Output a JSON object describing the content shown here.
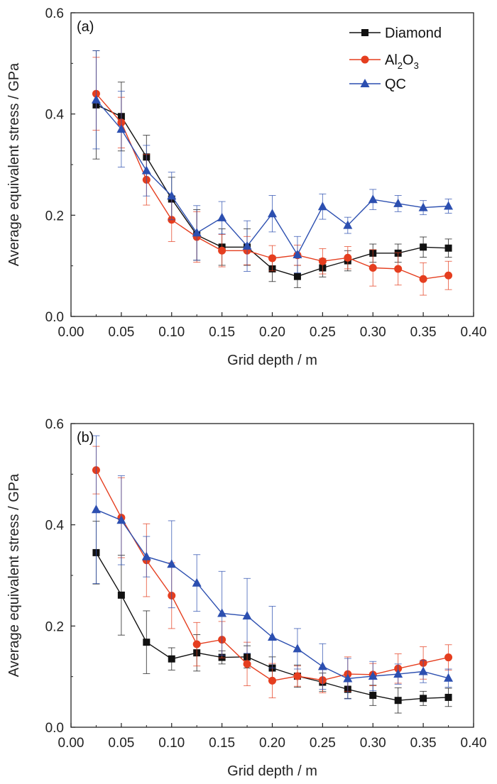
{
  "chart_data": [
    {
      "type": "line",
      "panel": "(a)",
      "xlabel": "Grid depth / m",
      "ylabel": "Average equivalent stress / GPa",
      "xlim": [
        0,
        0.4
      ],
      "ylim": [
        0,
        0.6
      ],
      "xticks": [
        "0.00",
        "0.05",
        "0.10",
        "0.15",
        "0.20",
        "0.25",
        "0.30",
        "0.35",
        "0.40"
      ],
      "yticks": [
        "0.0",
        "0.2",
        "0.4",
        "0.6"
      ],
      "legend_position": "top-right",
      "x": [
        0.025,
        0.05,
        0.075,
        0.1,
        0.125,
        0.15,
        0.175,
        0.2,
        0.225,
        0.25,
        0.275,
        0.3,
        0.325,
        0.35,
        0.375
      ],
      "series": [
        {
          "name": "Diamond",
          "color": "#111111",
          "marker": "square",
          "values": [
            0.418,
            0.395,
            0.315,
            0.232,
            0.161,
            0.137,
            0.137,
            0.094,
            0.079,
            0.096,
            0.11,
            0.125,
            0.125,
            0.137,
            0.135
          ],
          "errors": [
            0.107,
            0.068,
            0.043,
            0.043,
            0.05,
            0.036,
            0.036,
            0.025,
            0.022,
            0.018,
            0.02,
            0.018,
            0.018,
            0.02,
            0.018
          ]
        },
        {
          "name": "Al2O3",
          "color": "#e53e1f",
          "marker": "circle",
          "values": [
            0.44,
            0.383,
            0.27,
            0.191,
            0.157,
            0.13,
            0.13,
            0.115,
            0.121,
            0.109,
            0.116,
            0.096,
            0.094,
            0.074,
            0.081
          ],
          "errors": [
            0.072,
            0.05,
            0.05,
            0.043,
            0.05,
            0.032,
            0.028,
            0.025,
            0.02,
            0.025,
            0.022,
            0.036,
            0.032,
            0.032,
            0.028
          ]
        },
        {
          "name": "QC",
          "color": "#2c4fb0",
          "marker": "triangle",
          "values": [
            0.428,
            0.37,
            0.288,
            0.238,
            0.165,
            0.195,
            0.139,
            0.203,
            0.122,
            0.217,
            0.18,
            0.231,
            0.223,
            0.215,
            0.218
          ],
          "errors": [
            0.097,
            0.075,
            0.05,
            0.047,
            0.054,
            0.032,
            0.05,
            0.036,
            0.036,
            0.025,
            0.016,
            0.02,
            0.016,
            0.014,
            0.014
          ]
        }
      ]
    },
    {
      "type": "line",
      "panel": "(b)",
      "xlabel": "Grid depth / m",
      "ylabel": "Average equivalent stress / GPa",
      "xlim": [
        0,
        0.4
      ],
      "ylim": [
        0,
        0.6
      ],
      "xticks": [
        "0.00",
        "0.05",
        "0.10",
        "0.15",
        "0.20",
        "0.25",
        "0.30",
        "0.35",
        "0.40"
      ],
      "yticks": [
        "0.0",
        "0.2",
        "0.4",
        "0.6"
      ],
      "x": [
        0.025,
        0.05,
        0.075,
        0.1,
        0.125,
        0.15,
        0.175,
        0.2,
        0.225,
        0.25,
        0.275,
        0.3,
        0.325,
        0.35,
        0.375
      ],
      "series": [
        {
          "name": "Diamond",
          "color": "#111111",
          "marker": "square",
          "values": [
            0.345,
            0.261,
            0.168,
            0.135,
            0.147,
            0.138,
            0.139,
            0.117,
            0.101,
            0.089,
            0.075,
            0.063,
            0.053,
            0.057,
            0.059
          ],
          "errors": [
            0.062,
            0.079,
            0.062,
            0.022,
            0.036,
            0.013,
            0.022,
            0.022,
            0.022,
            0.018,
            0.018,
            0.02,
            0.025,
            0.014,
            0.018
          ]
        },
        {
          "name": "Al2O3",
          "color": "#e53e1f",
          "marker": "circle",
          "values": [
            0.508,
            0.414,
            0.33,
            0.26,
            0.164,
            0.173,
            0.125,
            0.092,
            0.101,
            0.093,
            0.105,
            0.104,
            0.116,
            0.127,
            0.138
          ],
          "errors": [
            0.047,
            0.079,
            0.072,
            0.065,
            0.043,
            0.036,
            0.043,
            0.034,
            0.02,
            0.025,
            0.034,
            0.022,
            0.029,
            0.032,
            0.025
          ]
        },
        {
          "name": "QC",
          "color": "#2c4fb0",
          "marker": "triangle",
          "values": [
            0.43,
            0.409,
            0.337,
            0.322,
            0.285,
            0.225,
            0.22,
            0.178,
            0.155,
            0.12,
            0.096,
            0.101,
            0.105,
            0.11,
            0.097
          ],
          "errors": [
            0.146,
            0.088,
            0.04,
            0.086,
            0.056,
            0.083,
            0.074,
            0.061,
            0.04,
            0.045,
            0.04,
            0.029,
            0.02,
            0.022,
            0.018
          ]
        }
      ]
    }
  ]
}
